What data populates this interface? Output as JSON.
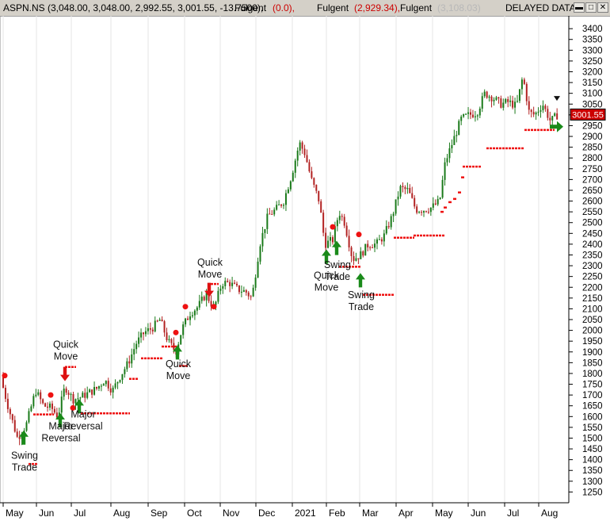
{
  "header": {
    "symbol": "ASPN.NS",
    "quote": "(3,048.00, 3,048.00, 2,992.55, 3,001.55, -13.7500),",
    "ind1_name": "Fulgent",
    "ind1_val": "(0.0),",
    "ind2_name": "Fulgent",
    "ind2_val": "(2,929.34),",
    "ind3_name": "Fulgent",
    "ind3_val": "(3,108.03)",
    "delayed": "DELAYED DATA",
    "btn_min": "▬",
    "btn_max": "□",
    "btn_close": "✕"
  },
  "colors": {
    "up": "#1a7a1a",
    "down": "#b22222",
    "stop": "#ee1111",
    "arrow_up": "#1a8a1a",
    "arrow_down": "#dd1111",
    "price_box": "#cc0000"
  },
  "chart_data": {
    "type": "candlestick",
    "series_name": "ASPN.NS",
    "y_axis_ticks": [
      1250,
      1300,
      1350,
      1400,
      1450,
      1500,
      1550,
      1600,
      1650,
      1700,
      1750,
      1800,
      1850,
      1900,
      1950,
      2000,
      2050,
      2100,
      2150,
      2200,
      2250,
      2300,
      2350,
      2400,
      2450,
      2500,
      2550,
      2600,
      2650,
      2700,
      2750,
      2800,
      2850,
      2900,
      2950,
      3000,
      3050,
      3100,
      3150,
      3200,
      3250,
      3300,
      3350,
      3400
    ],
    "ylim": [
      1200,
      3430
    ],
    "x_axis_labels": [
      "May",
      "Jun",
      "Jul",
      "Aug",
      "Sep",
      "Oct",
      "Nov",
      "Dec",
      "2021",
      "Feb",
      "Mar",
      "Apr",
      "May",
      "Jun",
      "Jul",
      "Aug"
    ],
    "last_price_label": "3001.55",
    "price_path": [
      [
        0,
        1790
      ],
      [
        10,
        1650
      ],
      [
        22,
        1500
      ],
      [
        33,
        1560
      ],
      [
        45,
        1720
      ],
      [
        55,
        1650
      ],
      [
        65,
        1640
      ],
      [
        73,
        1600
      ],
      [
        82,
        1740
      ],
      [
        92,
        1680
      ],
      [
        102,
        1690
      ],
      [
        112,
        1710
      ],
      [
        122,
        1730
      ],
      [
        132,
        1770
      ],
      [
        142,
        1720
      ],
      [
        152,
        1790
      ],
      [
        162,
        1850
      ],
      [
        172,
        1940
      ],
      [
        182,
        1990
      ],
      [
        192,
        2010
      ],
      [
        202,
        2050
      ],
      [
        212,
        1950
      ],
      [
        222,
        1900
      ],
      [
        230,
        2010
      ],
      [
        240,
        2080
      ],
      [
        250,
        2110
      ],
      [
        260,
        2170
      ],
      [
        270,
        2100
      ],
      [
        280,
        2220
      ],
      [
        290,
        2220
      ],
      [
        300,
        2190
      ],
      [
        310,
        2180
      ],
      [
        318,
        2150
      ],
      [
        328,
        2400
      ],
      [
        338,
        2530
      ],
      [
        348,
        2560
      ],
      [
        358,
        2600
      ],
      [
        368,
        2720
      ],
      [
        378,
        2870
      ],
      [
        385,
        2820
      ],
      [
        393,
        2700
      ],
      [
        403,
        2600
      ],
      [
        410,
        2400
      ],
      [
        420,
        2420
      ],
      [
        428,
        2550
      ],
      [
        435,
        2500
      ],
      [
        445,
        2330
      ],
      [
        455,
        2350
      ],
      [
        465,
        2400
      ],
      [
        475,
        2400
      ],
      [
        485,
        2440
      ],
      [
        495,
        2530
      ],
      [
        505,
        2660
      ],
      [
        515,
        2650
      ],
      [
        525,
        2560
      ],
      [
        535,
        2560
      ],
      [
        545,
        2570
      ],
      [
        555,
        2600
      ],
      [
        562,
        2780
      ],
      [
        572,
        2880
      ],
      [
        582,
        2980
      ],
      [
        592,
        3000
      ],
      [
        602,
        3010
      ],
      [
        612,
        3100
      ],
      [
        622,
        3080
      ],
      [
        632,
        3050
      ],
      [
        642,
        3060
      ],
      [
        652,
        3040
      ],
      [
        660,
        3180
      ],
      [
        668,
        3010
      ],
      [
        675,
        3000
      ],
      [
        685,
        3050
      ],
      [
        695,
        2970
      ],
      [
        704,
        3001
      ]
    ],
    "stop_levels": [
      {
        "x1": 36,
        "x2": 48,
        "v": 1380
      },
      {
        "x1": 42,
        "x2": 68,
        "v": 1610
      },
      {
        "x1": 82,
        "x2": 96,
        "v": 1830
      },
      {
        "x1": 102,
        "x2": 164,
        "v": 1615
      },
      {
        "x1": 163,
        "x2": 175,
        "v": 1775
      },
      {
        "x1": 178,
        "x2": 205,
        "v": 1870
      },
      {
        "x1": 204,
        "x2": 225,
        "v": 1925
      },
      {
        "x1": 226,
        "x2": 238,
        "v": 1835
      },
      {
        "x1": 262,
        "x2": 276,
        "v": 2215
      },
      {
        "x1": 428,
        "x2": 455,
        "v": 2295
      },
      {
        "x1": 458,
        "x2": 497,
        "v": 2165
      },
      {
        "x1": 497,
        "x2": 523,
        "v": 2430
      },
      {
        "x1": 522,
        "x2": 562,
        "v": 2440
      },
      {
        "x1": 584,
        "x2": 608,
        "v": 2760
      },
      {
        "x1": 614,
        "x2": 662,
        "v": 2845
      },
      {
        "x1": 662,
        "x2": 700,
        "v": 2930
      }
    ],
    "stop_steps": [
      [
        556,
        2550
      ],
      [
        560,
        2570
      ],
      [
        566,
        2595
      ],
      [
        572,
        2610
      ],
      [
        578,
        2640
      ],
      [
        582,
        2710
      ]
    ],
    "dots": [
      [
        6,
        1790
      ],
      [
        64,
        1700
      ],
      [
        92,
        1640
      ],
      [
        222,
        1990
      ],
      [
        234,
        2110
      ],
      [
        270,
        2110
      ],
      [
        420,
        2480
      ],
      [
        453,
        2445
      ]
    ],
    "arrows": [
      {
        "dir": "up",
        "x": 30,
        "v": 1510
      },
      {
        "dir": "up",
        "x": 76,
        "v": 1590
      },
      {
        "dir": "up",
        "x": 100,
        "v": 1655
      },
      {
        "dir": "up",
        "x": 224,
        "v": 1905
      },
      {
        "dir": "up",
        "x": 412,
        "v": 2350
      },
      {
        "dir": "up",
        "x": 425,
        "v": 2390
      },
      {
        "dir": "up",
        "x": 455,
        "v": 2240
      },
      {
        "dir": "down",
        "x": 82,
        "v": 1790
      },
      {
        "dir": "down",
        "x": 264,
        "v": 2180
      },
      {
        "dir": "down",
        "x": 703,
        "v": 3080
      },
      {
        "dir": "right",
        "x": 703,
        "v": 2945
      }
    ],
    "annotations": [
      {
        "lines": [
          "Swing",
          "Trade"
        ],
        "x": 31,
        "v": 1405
      },
      {
        "lines": [
          "Major",
          "Reversal"
        ],
        "x": 77,
        "v": 1540
      },
      {
        "lines": [
          "Major",
          "Reversal"
        ],
        "x": 105,
        "v": 1595
      },
      {
        "lines": [
          "Quick",
          "Move"
        ],
        "x": 83,
        "v": 1920
      },
      {
        "lines": [
          "Quick",
          "Move"
        ],
        "x": 225,
        "v": 1830
      },
      {
        "lines": [
          "Quick",
          "Move"
        ],
        "x": 265,
        "v": 2300
      },
      {
        "lines": [
          "Quick",
          "Move"
        ],
        "x": 412,
        "v": 2240
      },
      {
        "lines": [
          "Swing",
          "Trade"
        ],
        "x": 426,
        "v": 2290
      },
      {
        "lines": [
          "Swing",
          "Trade"
        ],
        "x": 456,
        "v": 2150
      }
    ]
  }
}
